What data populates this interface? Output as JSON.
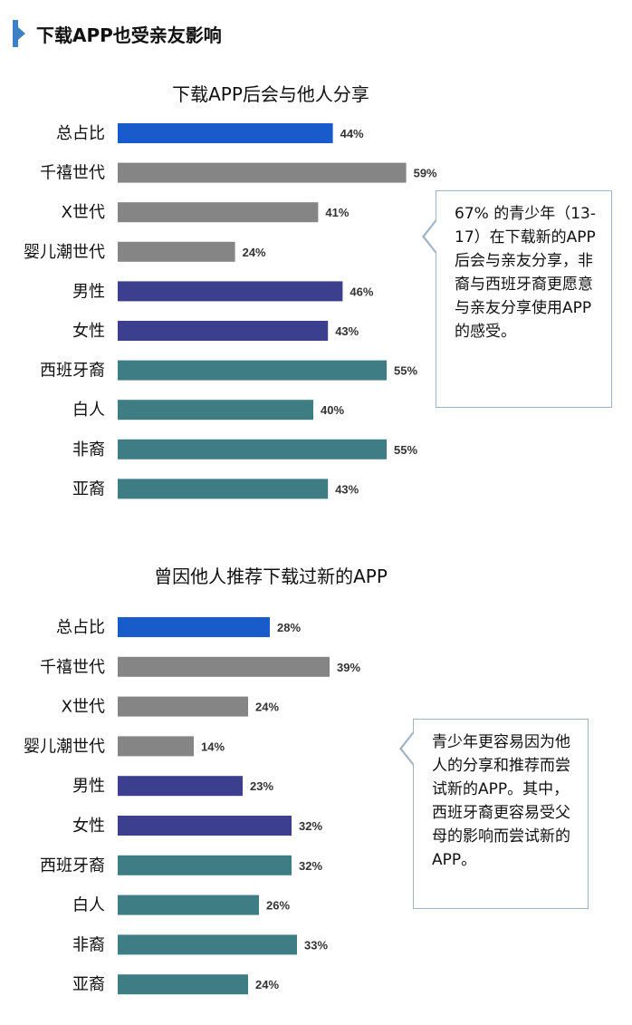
{
  "header": {
    "title": "下载APP也受亲友影响"
  },
  "callouts": [
    "67% 的青少年（13-17）在下载新的APP后会与亲友分享，非裔与西班牙裔更愿意与亲友分享使用APP的感受。",
    "青少年更容易因为他人的分享和推荐而尝试新的APP。其中，西班牙裔更容易受父母的影响而尝试新的APP。"
  ],
  "colors": {
    "total": "#1a5bcc",
    "generation": "#858585",
    "gender": "#3b3f8e",
    "ethnicity": "#3f7d85"
  },
  "chart_data": [
    {
      "type": "bar",
      "orientation": "horizontal",
      "title": "下载APP后会与他人分享",
      "categories": [
        "总占比",
        "千禧世代",
        "X世代",
        "婴儿潮世代",
        "男性",
        "女性",
        "西班牙裔",
        "白人",
        "非裔",
        "亚裔"
      ],
      "values": [
        44,
        59,
        41,
        24,
        46,
        43,
        55,
        40,
        55,
        43
      ],
      "value_labels": [
        "44%",
        "59%",
        "41%",
        "24%",
        "46%",
        "43%",
        "55%",
        "40%",
        "55%",
        "43%"
      ],
      "groups": [
        "total",
        "generation",
        "generation",
        "generation",
        "gender",
        "gender",
        "ethnicity",
        "ethnicity",
        "ethnicity",
        "ethnicity"
      ],
      "unit": "%",
      "xlim": [
        0,
        100
      ],
      "grid": false,
      "legend": "none"
    },
    {
      "type": "bar",
      "orientation": "horizontal",
      "title": "曾因他人推荐下载过新的APP",
      "categories": [
        "总占比",
        "千禧世代",
        "X世代",
        "婴儿潮世代",
        "男性",
        "女性",
        "西班牙裔",
        "白人",
        "非裔",
        "亚裔"
      ],
      "values": [
        28,
        39,
        24,
        14,
        23,
        32,
        32,
        26,
        33,
        24
      ],
      "value_labels": [
        "28%",
        "39%",
        "24%",
        "14%",
        "23%",
        "32%",
        "32%",
        "26%",
        "33%",
        "24%"
      ],
      "groups": [
        "total",
        "generation",
        "generation",
        "generation",
        "gender",
        "gender",
        "ethnicity",
        "ethnicity",
        "ethnicity",
        "ethnicity"
      ],
      "unit": "%",
      "xlim": [
        0,
        100
      ],
      "grid": false,
      "legend": "none"
    }
  ]
}
